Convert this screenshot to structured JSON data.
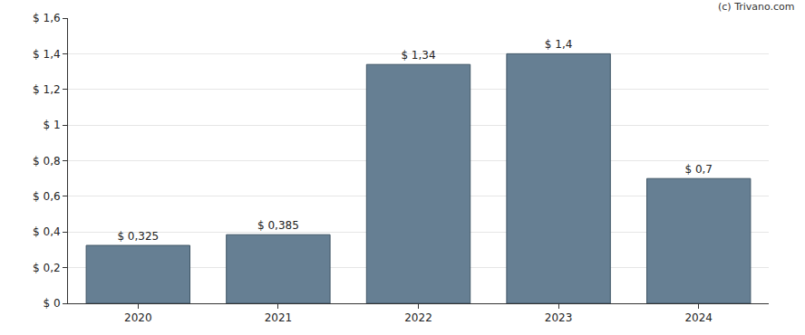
{
  "chart_data": {
    "type": "bar",
    "categories": [
      "2020",
      "2021",
      "2022",
      "2023",
      "2024"
    ],
    "values": [
      0.325,
      0.385,
      1.34,
      1.4,
      0.7
    ],
    "value_labels": [
      "$ 0,325",
      "$ 0,385",
      "$ 1,34",
      "$ 1,4",
      "$ 0,7"
    ],
    "data_labels": true,
    "color": "#667f93",
    "ylim": [
      0,
      1.6
    ],
    "yticks": [
      {
        "value": 0,
        "label": "$ 0"
      },
      {
        "value": 0.2,
        "label": "$ 0,2"
      },
      {
        "value": 0.4,
        "label": "$ 0,4"
      },
      {
        "value": 0.6,
        "label": "$ 0,6"
      },
      {
        "value": 0.8,
        "label": "$ 0,8"
      },
      {
        "value": 1,
        "label": "$ 1"
      },
      {
        "value": 1.2,
        "label": "$ 1,2"
      },
      {
        "value": 1.4,
        "label": "$ 1,4"
      },
      {
        "value": 1.6,
        "label": "$ 1,6"
      }
    ],
    "grid": true,
    "annotations": [
      {
        "text": "(c) Trivano.com"
      }
    ]
  }
}
